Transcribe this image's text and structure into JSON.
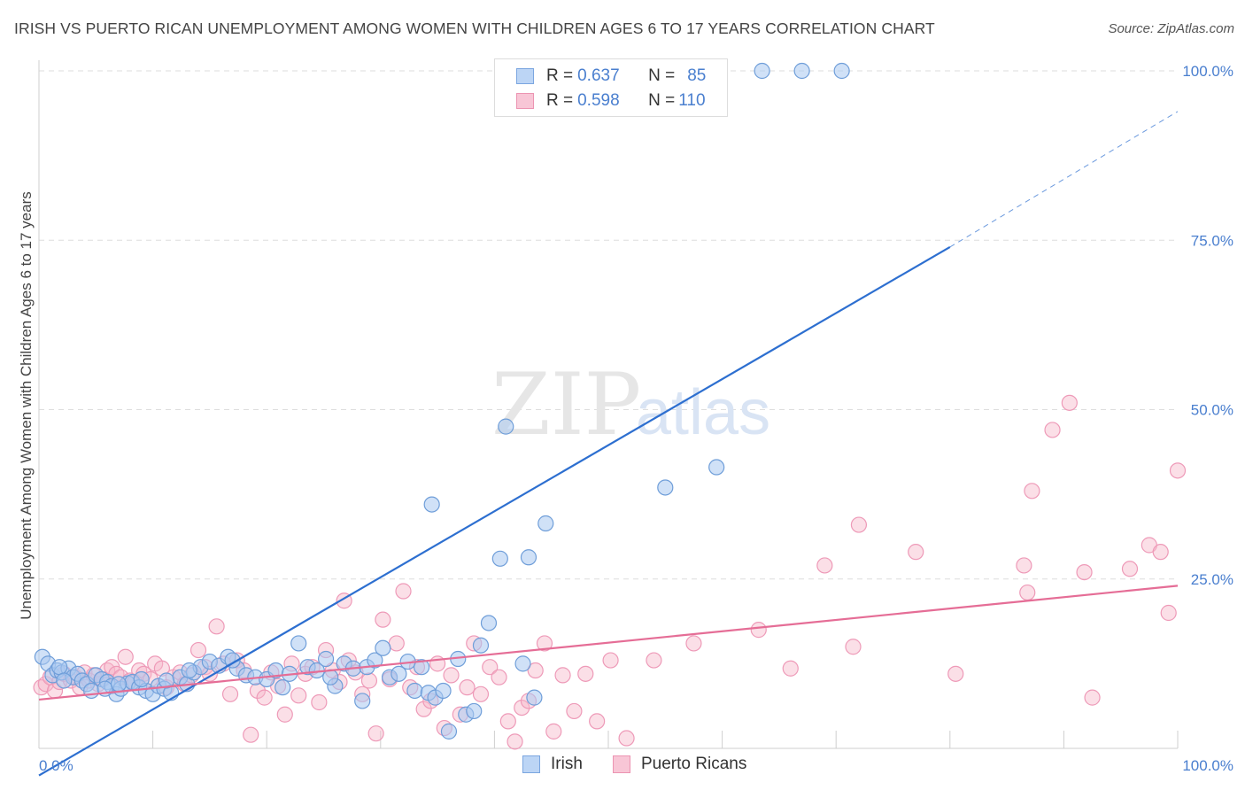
{
  "title": "IRISH VS PUERTO RICAN UNEMPLOYMENT AMONG WOMEN WITH CHILDREN AGES 6 TO 17 YEARS CORRELATION CHART",
  "source": "Source: ZipAtlas.com",
  "watermark": {
    "part1": "ZIP",
    "part2": "atlas"
  },
  "legend": {
    "irish": {
      "r_label": "R = ",
      "r": "0.637",
      "n_label": "N = ",
      "n": "85"
    },
    "pr": {
      "r_label": "R = ",
      "r": "0.598",
      "n_label": "N = ",
      "n": "110"
    }
  },
  "bottom_legend": {
    "irish": "Irish",
    "pr": "Puerto Ricans"
  },
  "chart_data": {
    "type": "scatter",
    "ylabel": "Unemployment Among Women with Children Ages 6 to 17 years",
    "xlim": [
      0,
      100
    ],
    "ylim": [
      0,
      100
    ],
    "x_tick_labels": [
      "0.0%",
      "100.0%"
    ],
    "y_tick_labels": [
      "25.0%",
      "50.0%",
      "75.0%",
      "100.0%"
    ],
    "y_ticks": [
      25,
      50,
      75,
      100
    ],
    "colors": {
      "irish": "#a9c8f0",
      "irish_line": "#2d6fd0",
      "pr": "#f6b7ca",
      "pr_line": "#e56d96",
      "tick_label": "#4a7fcf"
    },
    "series": [
      {
        "name": "Irish",
        "trend": {
          "x0": 0,
          "y0": -4,
          "x1": 80,
          "y1": 74,
          "dash_to_x": 100,
          "dash_to_y": 94
        },
        "points": [
          [
            0.3,
            13.5
          ],
          [
            0.8,
            12.5
          ],
          [
            1.2,
            10.8
          ],
          [
            1.6,
            11.5
          ],
          [
            2.0,
            11.2
          ],
          [
            2.6,
            11.8
          ],
          [
            3.0,
            10.5
          ],
          [
            3.4,
            11.0
          ],
          [
            3.8,
            10.0
          ],
          [
            4.2,
            9.5
          ],
          [
            4.6,
            8.5
          ],
          [
            5.0,
            10.8
          ],
          [
            5.5,
            10.2
          ],
          [
            6.0,
            9.8
          ],
          [
            6.4,
            9.2
          ],
          [
            6.8,
            8.0
          ],
          [
            7.2,
            8.8
          ],
          [
            7.8,
            9.6
          ],
          [
            8.2,
            9.8
          ],
          [
            8.8,
            9.0
          ],
          [
            9.4,
            8.5
          ],
          [
            10.0,
            8.0
          ],
          [
            10.5,
            9.2
          ],
          [
            11.0,
            8.8
          ],
          [
            11.6,
            8.2
          ],
          [
            12.4,
            10.5
          ],
          [
            13.0,
            9.5
          ],
          [
            13.6,
            11.2
          ],
          [
            14.2,
            12.0
          ],
          [
            15.0,
            12.8
          ],
          [
            15.8,
            12.2
          ],
          [
            16.6,
            13.5
          ],
          [
            17.4,
            11.8
          ],
          [
            18.2,
            10.8
          ],
          [
            19.0,
            10.5
          ],
          [
            20.0,
            10.2
          ],
          [
            20.8,
            11.5
          ],
          [
            21.4,
            9.0
          ],
          [
            22.0,
            11.0
          ],
          [
            22.8,
            15.5
          ],
          [
            23.6,
            12.0
          ],
          [
            24.4,
            11.5
          ],
          [
            25.2,
            13.2
          ],
          [
            26.0,
            9.2
          ],
          [
            26.8,
            12.5
          ],
          [
            27.6,
            11.8
          ],
          [
            28.4,
            7.0
          ],
          [
            28.8,
            12.0
          ],
          [
            29.5,
            13.0
          ],
          [
            30.2,
            14.8
          ],
          [
            30.8,
            10.5
          ],
          [
            31.6,
            11.0
          ],
          [
            32.4,
            12.8
          ],
          [
            33.0,
            8.5
          ],
          [
            33.6,
            12.0
          ],
          [
            34.2,
            8.2
          ],
          [
            34.8,
            7.5
          ],
          [
            35.5,
            8.5
          ],
          [
            36.0,
            2.5
          ],
          [
            36.8,
            13.2
          ],
          [
            37.5,
            5.0
          ],
          [
            38.2,
            5.5
          ],
          [
            38.8,
            15.2
          ],
          [
            39.5,
            18.5
          ],
          [
            40.5,
            28.0
          ],
          [
            41.0,
            47.5
          ],
          [
            42.5,
            12.5
          ],
          [
            43.0,
            28.2
          ],
          [
            43.5,
            7.5
          ],
          [
            44.5,
            33.2
          ],
          [
            55.0,
            38.5
          ],
          [
            59.5,
            41.5
          ],
          [
            63.5,
            100.0
          ],
          [
            70.5,
            100.0
          ],
          [
            67.0,
            100.0
          ],
          [
            34.5,
            36.0
          ],
          [
            1.8,
            12.0
          ],
          [
            2.2,
            10.0
          ],
          [
            5.8,
            8.8
          ],
          [
            7.0,
            9.5
          ],
          [
            9.0,
            10.2
          ],
          [
            11.2,
            10.0
          ],
          [
            13.2,
            11.5
          ],
          [
            17.0,
            13.0
          ],
          [
            25.6,
            10.5
          ]
        ]
      },
      {
        "name": "Puerto Ricans",
        "trend": {
          "x0": 0,
          "y0": 7.2,
          "x1": 100,
          "y1": 24.0
        },
        "points": [
          [
            0.2,
            9.0
          ],
          [
            0.6,
            9.5
          ],
          [
            1.0,
            10.5
          ],
          [
            1.4,
            8.5
          ],
          [
            1.8,
            9.8
          ],
          [
            2.2,
            11.0
          ],
          [
            2.8,
            10.0
          ],
          [
            3.2,
            10.5
          ],
          [
            3.6,
            9.0
          ],
          [
            4.0,
            11.2
          ],
          [
            4.4,
            10.0
          ],
          [
            4.8,
            10.8
          ],
          [
            5.2,
            9.5
          ],
          [
            5.6,
            10.2
          ],
          [
            6.0,
            11.5
          ],
          [
            6.4,
            12.0
          ],
          [
            6.8,
            11.0
          ],
          [
            7.2,
            10.5
          ],
          [
            7.6,
            13.5
          ],
          [
            8.0,
            10.0
          ],
          [
            8.4,
            9.8
          ],
          [
            8.8,
            11.5
          ],
          [
            9.2,
            11.0
          ],
          [
            9.8,
            10.2
          ],
          [
            10.2,
            12.5
          ],
          [
            10.8,
            11.8
          ],
          [
            11.2,
            9.0
          ],
          [
            11.8,
            10.5
          ],
          [
            12.4,
            11.2
          ],
          [
            12.8,
            9.5
          ],
          [
            13.4,
            10.8
          ],
          [
            14.0,
            14.5
          ],
          [
            14.6,
            12.0
          ],
          [
            15.0,
            11.0
          ],
          [
            15.6,
            18.0
          ],
          [
            16.2,
            12.5
          ],
          [
            16.8,
            8.0
          ],
          [
            17.4,
            13.0
          ],
          [
            18.0,
            11.5
          ],
          [
            18.6,
            2.0
          ],
          [
            19.2,
            8.5
          ],
          [
            19.8,
            7.5
          ],
          [
            20.4,
            11.2
          ],
          [
            21.0,
            9.2
          ],
          [
            21.6,
            5.0
          ],
          [
            22.2,
            12.5
          ],
          [
            22.8,
            7.8
          ],
          [
            23.4,
            11.0
          ],
          [
            24.0,
            12.0
          ],
          [
            24.6,
            6.8
          ],
          [
            25.2,
            14.5
          ],
          [
            25.8,
            11.5
          ],
          [
            26.4,
            9.8
          ],
          [
            26.8,
            21.8
          ],
          [
            27.2,
            13.0
          ],
          [
            27.8,
            11.2
          ],
          [
            28.4,
            8.0
          ],
          [
            29.0,
            10.0
          ],
          [
            29.6,
            2.2
          ],
          [
            30.2,
            19.0
          ],
          [
            30.8,
            10.2
          ],
          [
            31.4,
            15.5
          ],
          [
            32.0,
            23.2
          ],
          [
            32.6,
            9.0
          ],
          [
            33.2,
            12.0
          ],
          [
            33.8,
            5.8
          ],
          [
            34.4,
            7.0
          ],
          [
            35.0,
            12.5
          ],
          [
            35.6,
            3.0
          ],
          [
            36.2,
            10.8
          ],
          [
            37.0,
            5.0
          ],
          [
            37.6,
            9.0
          ],
          [
            38.2,
            15.5
          ],
          [
            38.8,
            8.0
          ],
          [
            39.6,
            12.0
          ],
          [
            40.4,
            10.5
          ],
          [
            41.2,
            4.0
          ],
          [
            41.8,
            1.0
          ],
          [
            42.4,
            6.0
          ],
          [
            43.0,
            7.0
          ],
          [
            43.6,
            11.5
          ],
          [
            44.4,
            15.5
          ],
          [
            45.2,
            2.5
          ],
          [
            46.0,
            10.8
          ],
          [
            47.0,
            5.5
          ],
          [
            48.0,
            11.0
          ],
          [
            49.0,
            4.0
          ],
          [
            50.2,
            13.0
          ],
          [
            51.6,
            1.5
          ],
          [
            54.0,
            13.0
          ],
          [
            57.5,
            15.5
          ],
          [
            63.2,
            17.5
          ],
          [
            66.0,
            11.8
          ],
          [
            69.0,
            27.0
          ],
          [
            71.5,
            15.0
          ],
          [
            72.0,
            33.0
          ],
          [
            77.0,
            29.0
          ],
          [
            80.5,
            11.0
          ],
          [
            86.5,
            27.0
          ],
          [
            86.8,
            23.0
          ],
          [
            87.2,
            38.0
          ],
          [
            89.0,
            47.0
          ],
          [
            90.5,
            51.0
          ],
          [
            91.8,
            26.0
          ],
          [
            92.5,
            7.5
          ],
          [
            95.8,
            26.5
          ],
          [
            97.5,
            30.0
          ],
          [
            98.5,
            29.0
          ],
          [
            99.2,
            20.0
          ],
          [
            100.0,
            41.0
          ]
        ]
      }
    ]
  }
}
